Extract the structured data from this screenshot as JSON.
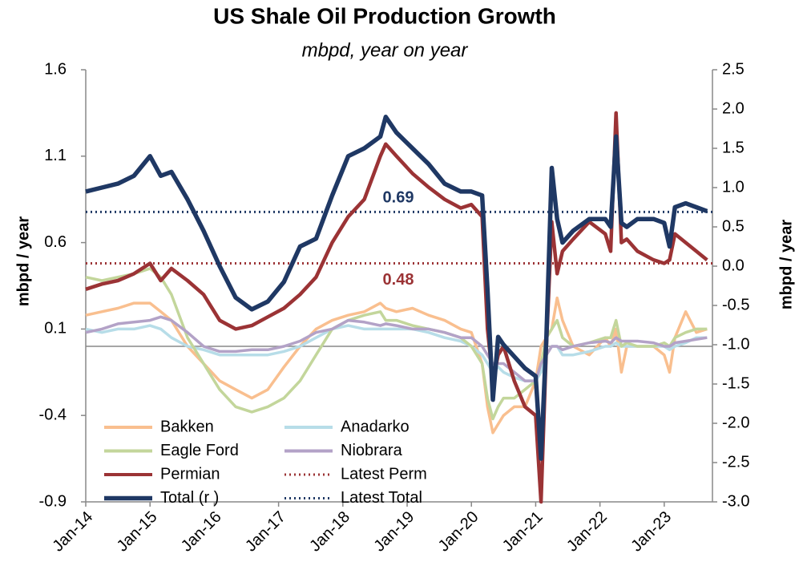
{
  "chart_data": {
    "type": "line",
    "title": "US Shale Oil Production Growth",
    "subtitle": "mbpd, year on year",
    "ylabel": "mbpd / year",
    "y2label": "mbpd / year",
    "x": [
      "2014-01",
      "2014-04",
      "2014-07",
      "2014-10",
      "2015-01",
      "2015-03",
      "2015-05",
      "2015-08",
      "2015-11",
      "2016-02",
      "2016-05",
      "2016-08",
      "2016-11",
      "2017-02",
      "2017-05",
      "2017-08",
      "2017-11",
      "2018-02",
      "2018-05",
      "2018-08",
      "2018-09",
      "2018-11",
      "2019-02",
      "2019-05",
      "2019-08",
      "2019-11",
      "2020-01",
      "2020-03",
      "2020-04",
      "2020-05",
      "2020-06",
      "2020-07",
      "2020-09",
      "2020-11",
      "2021-01",
      "2021-02",
      "2021-03",
      "2021-04",
      "2021-05",
      "2021-06",
      "2021-08",
      "2021-11",
      "2022-02",
      "2022-03",
      "2022-04",
      "2022-05",
      "2022-06",
      "2022-08",
      "2022-11",
      "2023-01",
      "2023-02",
      "2023-03",
      "2023-05",
      "2023-07",
      "2023-09"
    ],
    "xlim": [
      "2014-01",
      "2023-10"
    ],
    "xticks": [
      {
        "value": "2014-01",
        "label": "Jan-14"
      },
      {
        "value": "2015-01",
        "label": "Jan-15"
      },
      {
        "value": "2016-01",
        "label": "Jan-16"
      },
      {
        "value": "2017-01",
        "label": "Jan-17"
      },
      {
        "value": "2018-01",
        "label": "Jan-18"
      },
      {
        "value": "2019-01",
        "label": "Jan-19"
      },
      {
        "value": "2020-01",
        "label": "Jan-20"
      },
      {
        "value": "2021-01",
        "label": "Jan-21"
      },
      {
        "value": "2022-01",
        "label": "Jan-22"
      },
      {
        "value": "2023-01",
        "label": "Jan-23"
      }
    ],
    "ylim": [
      -0.9,
      1.6
    ],
    "yticks": [
      -0.9,
      -0.4,
      0.1,
      0.6,
      1.1,
      1.6
    ],
    "y2lim": [
      -3.0,
      2.5
    ],
    "y2ticks": [
      2.5,
      {
        "value": 2,
        "label": "2.0"
      },
      1.5,
      {
        "value": 1,
        "label": "1.0"
      },
      0.5,
      {
        "value": 0,
        "label": "0.0"
      },
      -0.5,
      {
        "value": -1,
        "label": "-1.0"
      },
      -1.5,
      {
        "value": -2,
        "label": "-2.0"
      },
      -2.5,
      {
        "value": -3,
        "label": "-3.0"
      }
    ],
    "series": [
      {
        "name": "Bakken",
        "color": "#f9bf8f",
        "values": [
          0.18,
          0.2,
          0.22,
          0.25,
          0.25,
          0.2,
          0.15,
          0.0,
          -0.1,
          -0.2,
          -0.25,
          -0.3,
          -0.25,
          -0.12,
          0.0,
          0.1,
          0.15,
          0.18,
          0.2,
          0.25,
          0.22,
          0.2,
          0.22,
          0.18,
          0.15,
          0.1,
          0.08,
          -0.1,
          -0.35,
          -0.5,
          -0.45,
          -0.4,
          -0.35,
          -0.35,
          -0.2,
          0.0,
          0.05,
          0.1,
          0.28,
          0.15,
          0.0,
          -0.05,
          0.05,
          0.0,
          0.1,
          -0.15,
          0.0,
          0.0,
          0.0,
          -0.05,
          -0.15,
          0.05,
          0.2,
          0.08,
          0.1
        ]
      },
      {
        "name": "Anadarko",
        "color": "#b7dde8",
        "values": [
          0.1,
          0.08,
          0.1,
          0.1,
          0.12,
          0.1,
          0.05,
          0.0,
          -0.02,
          -0.05,
          -0.05,
          -0.05,
          -0.05,
          -0.03,
          0.0,
          0.05,
          0.1,
          0.12,
          0.1,
          0.1,
          0.1,
          0.1,
          0.1,
          0.08,
          0.05,
          0.03,
          0.0,
          -0.05,
          -0.1,
          -0.15,
          -0.12,
          -0.15,
          -0.18,
          -0.2,
          -0.2,
          -0.15,
          -0.05,
          0.0,
          0.0,
          -0.05,
          -0.05,
          -0.03,
          0.0,
          0.0,
          0.02,
          0.0,
          0.0,
          0.0,
          0.0,
          0.0,
          -0.02,
          0.0,
          0.02,
          0.05,
          0.05
        ]
      },
      {
        "name": "Eagle Ford",
        "color": "#c3d69b",
        "values": [
          0.4,
          0.38,
          0.4,
          0.42,
          0.45,
          0.4,
          0.3,
          0.05,
          -0.1,
          -0.25,
          -0.35,
          -0.38,
          -0.35,
          -0.3,
          -0.2,
          -0.05,
          0.1,
          0.15,
          0.18,
          0.2,
          0.15,
          0.15,
          0.12,
          0.1,
          0.08,
          0.05,
          0.0,
          -0.1,
          -0.3,
          -0.42,
          -0.35,
          -0.3,
          -0.3,
          -0.25,
          -0.2,
          -0.1,
          0.05,
          0.1,
          0.15,
          0.05,
          0.0,
          0.02,
          0.05,
          0.05,
          0.15,
          0.0,
          0.02,
          0.0,
          0.0,
          0.02,
          0.0,
          0.05,
          0.08,
          0.1,
          0.1
        ]
      },
      {
        "name": "Niobrara",
        "color": "#b3a2c7",
        "values": [
          0.08,
          0.1,
          0.13,
          0.14,
          0.15,
          0.17,
          0.15,
          0.08,
          0.0,
          -0.03,
          -0.03,
          -0.02,
          -0.02,
          0.0,
          0.03,
          0.08,
          0.1,
          0.15,
          0.14,
          0.12,
          0.13,
          0.12,
          0.1,
          0.1,
          0.08,
          0.05,
          0.05,
          0.0,
          -0.05,
          -0.1,
          -0.1,
          -0.1,
          -0.15,
          -0.2,
          -0.2,
          -0.1,
          -0.05,
          0.0,
          0.0,
          -0.02,
          0.0,
          0.02,
          0.03,
          0.02,
          0.05,
          0.03,
          0.03,
          0.03,
          0.02,
          0.0,
          0.0,
          0.02,
          0.03,
          0.04,
          0.05
        ]
      },
      {
        "name": "Permian",
        "color": "#9b3335",
        "values": [
          0.33,
          0.36,
          0.38,
          0.42,
          0.48,
          0.38,
          0.45,
          0.38,
          0.3,
          0.15,
          0.1,
          0.12,
          0.17,
          0.22,
          0.3,
          0.4,
          0.6,
          0.75,
          0.85,
          1.1,
          1.17,
          1.1,
          1.0,
          0.92,
          0.85,
          0.8,
          0.82,
          0.75,
          0.1,
          -0.2,
          -0.05,
          0.0,
          -0.2,
          -0.35,
          -0.4,
          -0.9,
          0.0,
          0.72,
          0.42,
          0.55,
          0.62,
          0.72,
          0.65,
          0.55,
          1.35,
          0.6,
          0.62,
          0.55,
          0.5,
          0.48,
          0.5,
          0.65,
          0.6,
          0.55,
          0.5
        ]
      },
      {
        "name": "Total (r )",
        "color": "#1f3864",
        "axis": "y2",
        "values": [
          0.95,
          1.0,
          1.05,
          1.15,
          1.4,
          1.15,
          1.2,
          0.85,
          0.45,
          0.0,
          -0.4,
          -0.55,
          -0.45,
          -0.2,
          0.25,
          0.35,
          0.9,
          1.4,
          1.5,
          1.65,
          1.9,
          1.7,
          1.5,
          1.3,
          1.05,
          0.95,
          0.95,
          0.9,
          -0.3,
          -1.7,
          -0.9,
          -1.0,
          -1.15,
          -1.3,
          -1.4,
          -2.45,
          -0.9,
          1.25,
          0.6,
          0.3,
          0.45,
          0.6,
          0.6,
          0.5,
          1.65,
          0.55,
          0.5,
          0.6,
          0.6,
          0.55,
          0.25,
          0.75,
          0.8,
          0.75,
          0.7
        ]
      }
    ],
    "latest_lines": [
      {
        "name": "Latest Perm",
        "value": 0.48,
        "color": "#9b3335"
      },
      {
        "name": "Latest Total",
        "value": 0.69,
        "axis": "y2",
        "color": "#1f3864"
      }
    ]
  }
}
